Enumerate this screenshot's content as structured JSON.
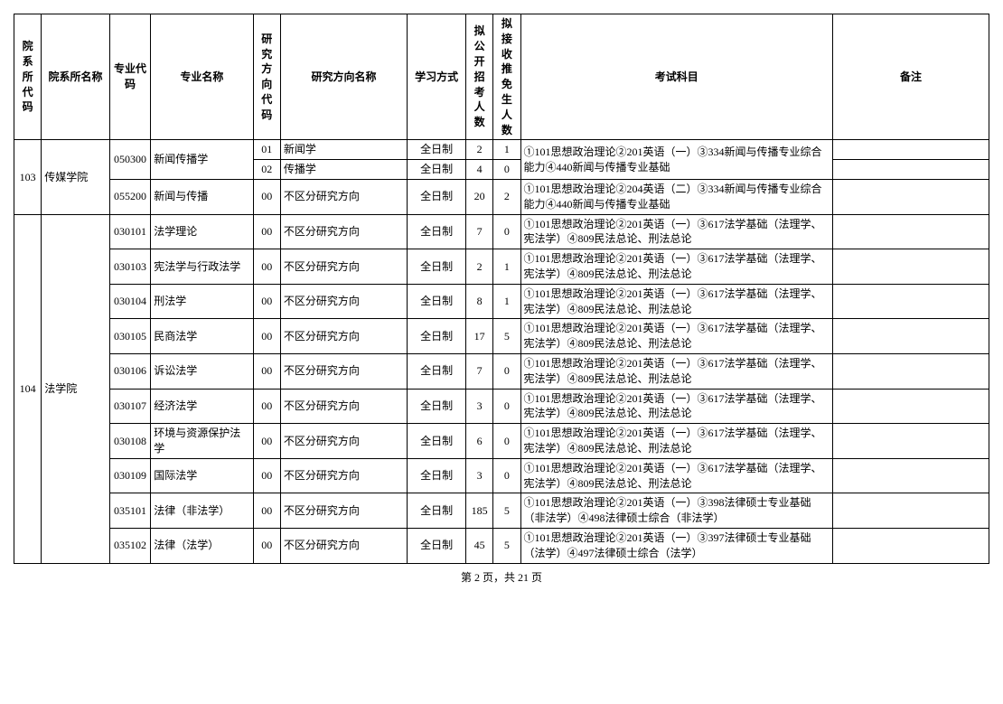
{
  "headers": {
    "deptCode": "院系所代码",
    "deptName": "院系所名称",
    "majorCode": "专业代码",
    "majorName": "专业名称",
    "dirCode": "研究方向代码",
    "dirName": "研究方向名称",
    "studyMode": "学习方式",
    "planCount": "拟公开招考人数",
    "recCount": "拟接收推免生人数",
    "exam": "考试科目",
    "note": "备注"
  },
  "departments": [
    {
      "code": "103",
      "name": "传媒学院",
      "rows": [
        {
          "majorCode": "050300",
          "majorName": "新闻传播学",
          "majorRowspan": 2,
          "dirCode": "01",
          "dirName": "新闻学",
          "studyMode": "全日制",
          "planCount": "2",
          "recCount": "1",
          "exam": "①101思想政治理论②201英语（一）③334新闻与传播专业综合能力④440新闻与传播专业基础",
          "examRowspan": 2,
          "note": ""
        },
        {
          "dirCode": "02",
          "dirName": "传播学",
          "studyMode": "全日制",
          "planCount": "4",
          "recCount": "0",
          "note": ""
        },
        {
          "majorCode": "055200",
          "majorName": "新闻与传播",
          "majorRowspan": 1,
          "dirCode": "00",
          "dirName": "不区分研究方向",
          "studyMode": "全日制",
          "planCount": "20",
          "recCount": "2",
          "exam": "①101思想政治理论②204英语（二）③334新闻与传播专业综合能力④440新闻与传播专业基础",
          "examRowspan": 1,
          "note": ""
        }
      ]
    },
    {
      "code": "104",
      "name": "法学院",
      "rows": [
        {
          "majorCode": "030101",
          "majorName": "法学理论",
          "majorRowspan": 1,
          "dirCode": "00",
          "dirName": "不区分研究方向",
          "studyMode": "全日制",
          "planCount": "7",
          "recCount": "0",
          "exam": "①101思想政治理论②201英语（一）③617法学基础（法理学、宪法学）④809民法总论、刑法总论",
          "examRowspan": 1,
          "note": ""
        },
        {
          "majorCode": "030103",
          "majorName": "宪法学与行政法学",
          "majorRowspan": 1,
          "dirCode": "00",
          "dirName": "不区分研究方向",
          "studyMode": "全日制",
          "planCount": "2",
          "recCount": "1",
          "exam": "①101思想政治理论②201英语（一）③617法学基础（法理学、宪法学）④809民法总论、刑法总论",
          "examRowspan": 1,
          "note": ""
        },
        {
          "majorCode": "030104",
          "majorName": "刑法学",
          "majorRowspan": 1,
          "dirCode": "00",
          "dirName": "不区分研究方向",
          "studyMode": "全日制",
          "planCount": "8",
          "recCount": "1",
          "exam": "①101思想政治理论②201英语（一）③617法学基础（法理学、宪法学）④809民法总论、刑法总论",
          "examRowspan": 1,
          "note": ""
        },
        {
          "majorCode": "030105",
          "majorName": "民商法学",
          "majorRowspan": 1,
          "dirCode": "00",
          "dirName": "不区分研究方向",
          "studyMode": "全日制",
          "planCount": "17",
          "recCount": "5",
          "exam": "①101思想政治理论②201英语（一）③617法学基础（法理学、宪法学）④809民法总论、刑法总论",
          "examRowspan": 1,
          "note": ""
        },
        {
          "majorCode": "030106",
          "majorName": "诉讼法学",
          "majorRowspan": 1,
          "dirCode": "00",
          "dirName": "不区分研究方向",
          "studyMode": "全日制",
          "planCount": "7",
          "recCount": "0",
          "exam": "①101思想政治理论②201英语（一）③617法学基础（法理学、宪法学）④809民法总论、刑法总论",
          "examRowspan": 1,
          "note": ""
        },
        {
          "majorCode": "030107",
          "majorName": "经济法学",
          "majorRowspan": 1,
          "dirCode": "00",
          "dirName": "不区分研究方向",
          "studyMode": "全日制",
          "planCount": "3",
          "recCount": "0",
          "exam": "①101思想政治理论②201英语（一）③617法学基础（法理学、宪法学）④809民法总论、刑法总论",
          "examRowspan": 1,
          "note": ""
        },
        {
          "majorCode": "030108",
          "majorName": "环境与资源保护法学",
          "majorRowspan": 1,
          "dirCode": "00",
          "dirName": "不区分研究方向",
          "studyMode": "全日制",
          "planCount": "6",
          "recCount": "0",
          "exam": "①101思想政治理论②201英语（一）③617法学基础（法理学、宪法学）④809民法总论、刑法总论",
          "examRowspan": 1,
          "note": ""
        },
        {
          "majorCode": "030109",
          "majorName": "国际法学",
          "majorRowspan": 1,
          "dirCode": "00",
          "dirName": "不区分研究方向",
          "studyMode": "全日制",
          "planCount": "3",
          "recCount": "0",
          "exam": "①101思想政治理论②201英语（一）③617法学基础（法理学、宪法学）④809民法总论、刑法总论",
          "examRowspan": 1,
          "note": ""
        },
        {
          "majorCode": "035101",
          "majorName": "法律（非法学）",
          "majorRowspan": 1,
          "dirCode": "00",
          "dirName": "不区分研究方向",
          "studyMode": "全日制",
          "planCount": "185",
          "recCount": "5",
          "exam": "①101思想政治理论②201英语（一）③398法律硕士专业基础（非法学）④498法律硕士综合（非法学）",
          "examRowspan": 1,
          "note": ""
        },
        {
          "majorCode": "035102",
          "majorName": "法律（法学）",
          "majorRowspan": 1,
          "dirCode": "00",
          "dirName": "不区分研究方向",
          "studyMode": "全日制",
          "planCount": "45",
          "recCount": "5",
          "exam": "①101思想政治理论②201英语（一）③397法律硕士专业基础（法学）④497法律硕士综合（法学）",
          "examRowspan": 1,
          "note": ""
        }
      ]
    }
  ],
  "pager": "第 2 页，共 21 页"
}
